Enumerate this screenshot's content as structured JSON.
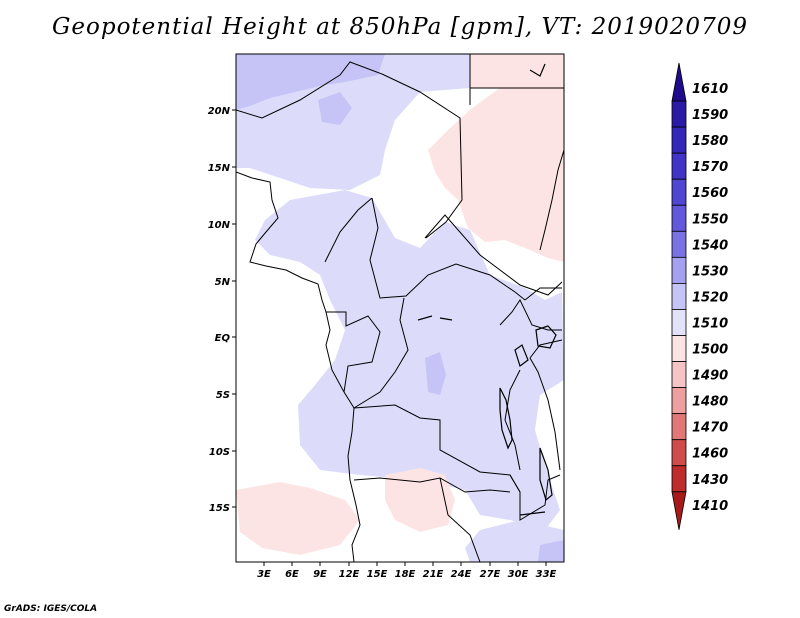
{
  "title": "Geopotential Height at 850hPa [gpm], VT: 2019020709",
  "credit": "GrADS: IGES/COLA",
  "map": {
    "lat_labels": [
      "20N",
      "15N",
      "10N",
      "5N",
      "EQ",
      "5S",
      "10S",
      "15S"
    ],
    "lon_labels": [
      "3E",
      "6E",
      "9E",
      "12E",
      "15E",
      "18E",
      "21E",
      "24E",
      "27E",
      "30E",
      "33E"
    ]
  },
  "colorbar": {
    "labels": [
      "1610",
      "1590",
      "1580",
      "1570",
      "1560",
      "1550",
      "1540",
      "1530",
      "1520",
      "1510",
      "1500",
      "1490",
      "1480",
      "1470",
      "1460",
      "1430",
      "1410"
    ],
    "colors": [
      "#1e0c8c",
      "#2a1aa6",
      "#3426b8",
      "#4134c6",
      "#5046d2",
      "#6358dc",
      "#7a72e4",
      "#a6a0f0",
      "#c6c4f6",
      "#e2e2fb",
      "#fde4e4",
      "#f6c4c4",
      "#eea0a0",
      "#e07878",
      "#d04c4c",
      "#be2c2c",
      "#a81a1a"
    ]
  },
  "colors": {
    "light_blue": "#dcdcfa",
    "mid_blue": "#c8c6f6",
    "light_pink": "#fde4e4",
    "border": "#000000"
  }
}
